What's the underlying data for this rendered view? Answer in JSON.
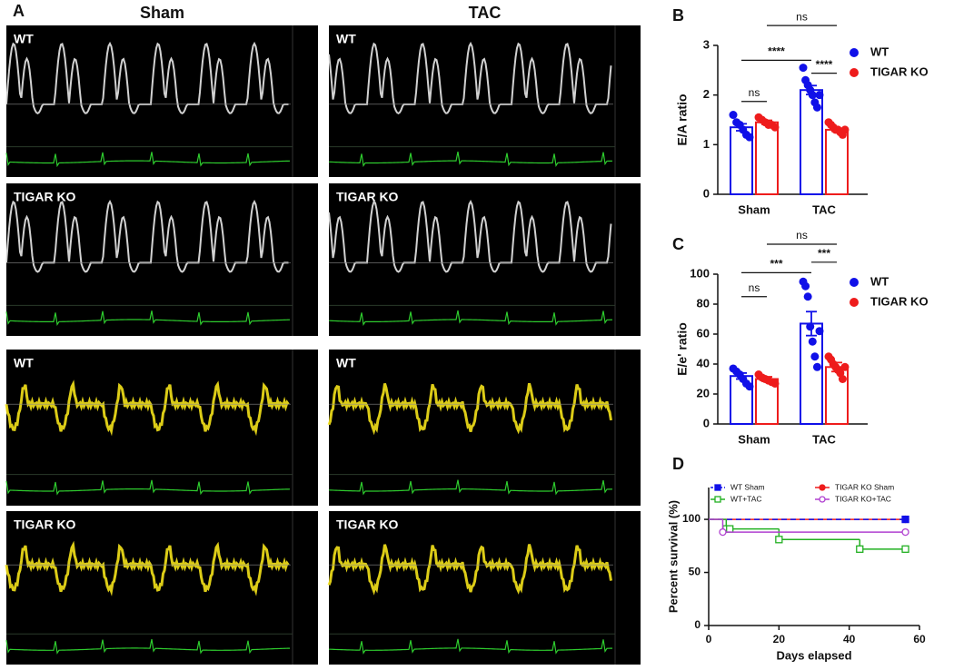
{
  "panel_a": {
    "label": "A",
    "columns": [
      "Sham",
      "TAC"
    ],
    "rows": [
      "WT",
      "TIGAR KO",
      "WT",
      "TIGAR KO"
    ]
  },
  "chart_data": [
    {
      "type": "bar",
      "panel": "B",
      "ylabel": "E/A ratio",
      "categories": [
        "Sham",
        "TAC"
      ],
      "ylim": [
        0,
        3
      ],
      "yticks": [
        0,
        1,
        2,
        3
      ],
      "series": [
        {
          "name": "WT",
          "color": "#1010e8",
          "values": [
            1.35,
            2.1
          ],
          "errors": [
            0.07,
            0.09
          ],
          "points": [
            [
              1.6,
              1.45,
              1.4,
              1.3,
              1.2,
              1.15
            ],
            [
              2.55,
              2.3,
              2.2,
              2.1,
              2.0,
              1.85,
              1.75,
              2.0
            ]
          ]
        },
        {
          "name": "TIGAR KO",
          "color": "#ee1c1c",
          "values": [
            1.45,
            1.3
          ],
          "errors": [
            0.04,
            0.03
          ],
          "points": [
            [
              1.55,
              1.5,
              1.45,
              1.4,
              1.4,
              1.35
            ],
            [
              1.45,
              1.4,
              1.35,
              1.3,
              1.3,
              1.25,
              1.2,
              1.3
            ]
          ]
        }
      ],
      "annotations": [
        "ns",
        "****",
        "****",
        "ns"
      ]
    },
    {
      "type": "bar",
      "panel": "C",
      "ylabel": "E/e' ratio",
      "categories": [
        "Sham",
        "TAC"
      ],
      "ylim": [
        0,
        100
      ],
      "yticks": [
        0,
        20,
        40,
        60,
        80,
        100
      ],
      "series": [
        {
          "name": "WT",
          "color": "#1010e8",
          "values": [
            32,
            67
          ],
          "errors": [
            2,
            8
          ],
          "points": [
            [
              37,
              35,
              33,
              30,
              27,
              25
            ],
            [
              95,
              92,
              85,
              65,
              55,
              45,
              38,
              62
            ]
          ]
        },
        {
          "name": "TIGAR KO",
          "color": "#ee1c1c",
          "values": [
            30,
            38
          ],
          "errors": [
            1.5,
            3
          ],
          "points": [
            [
              33,
              31,
              30,
              29,
              28,
              27
            ],
            [
              45,
              43,
              40,
              38,
              36,
              34,
              30,
              38
            ]
          ]
        }
      ],
      "annotations": [
        "ns",
        "***",
        "***",
        "ns"
      ]
    },
    {
      "type": "survival",
      "panel": "D",
      "xlabel": "Days elapsed",
      "ylabel": "Percent survival (%)",
      "xlim": [
        0,
        60
      ],
      "xticks": [
        0,
        20,
        40,
        60
      ],
      "ylim": [
        0,
        130
      ],
      "yticks": [
        0,
        50,
        100
      ],
      "series": [
        {
          "name": "TIGAR KO Sham",
          "color": "#ee1c1c",
          "marker": "circle",
          "filled": true,
          "dashed": false,
          "x": [
            0,
            56
          ],
          "values": [
            100,
            100
          ]
        },
        {
          "name": "WT Sham",
          "color": "#1010e8",
          "marker": "square",
          "filled": true,
          "dashed": true,
          "x": [
            0,
            56
          ],
          "values": [
            100,
            100
          ]
        },
        {
          "name": "WT+TAC",
          "color": "#22b022",
          "marker": "square",
          "filled": false,
          "dashed": false,
          "x": [
            0,
            5,
            6,
            20,
            43,
            56
          ],
          "values": [
            100,
            91,
            91,
            81,
            72,
            72
          ]
        },
        {
          "name": "TIGAR KO+TAC",
          "color": "#b040d0",
          "marker": "circle",
          "filled": false,
          "dashed": false,
          "x": [
            0,
            4,
            56
          ],
          "values": [
            100,
            88,
            88
          ]
        }
      ]
    }
  ]
}
